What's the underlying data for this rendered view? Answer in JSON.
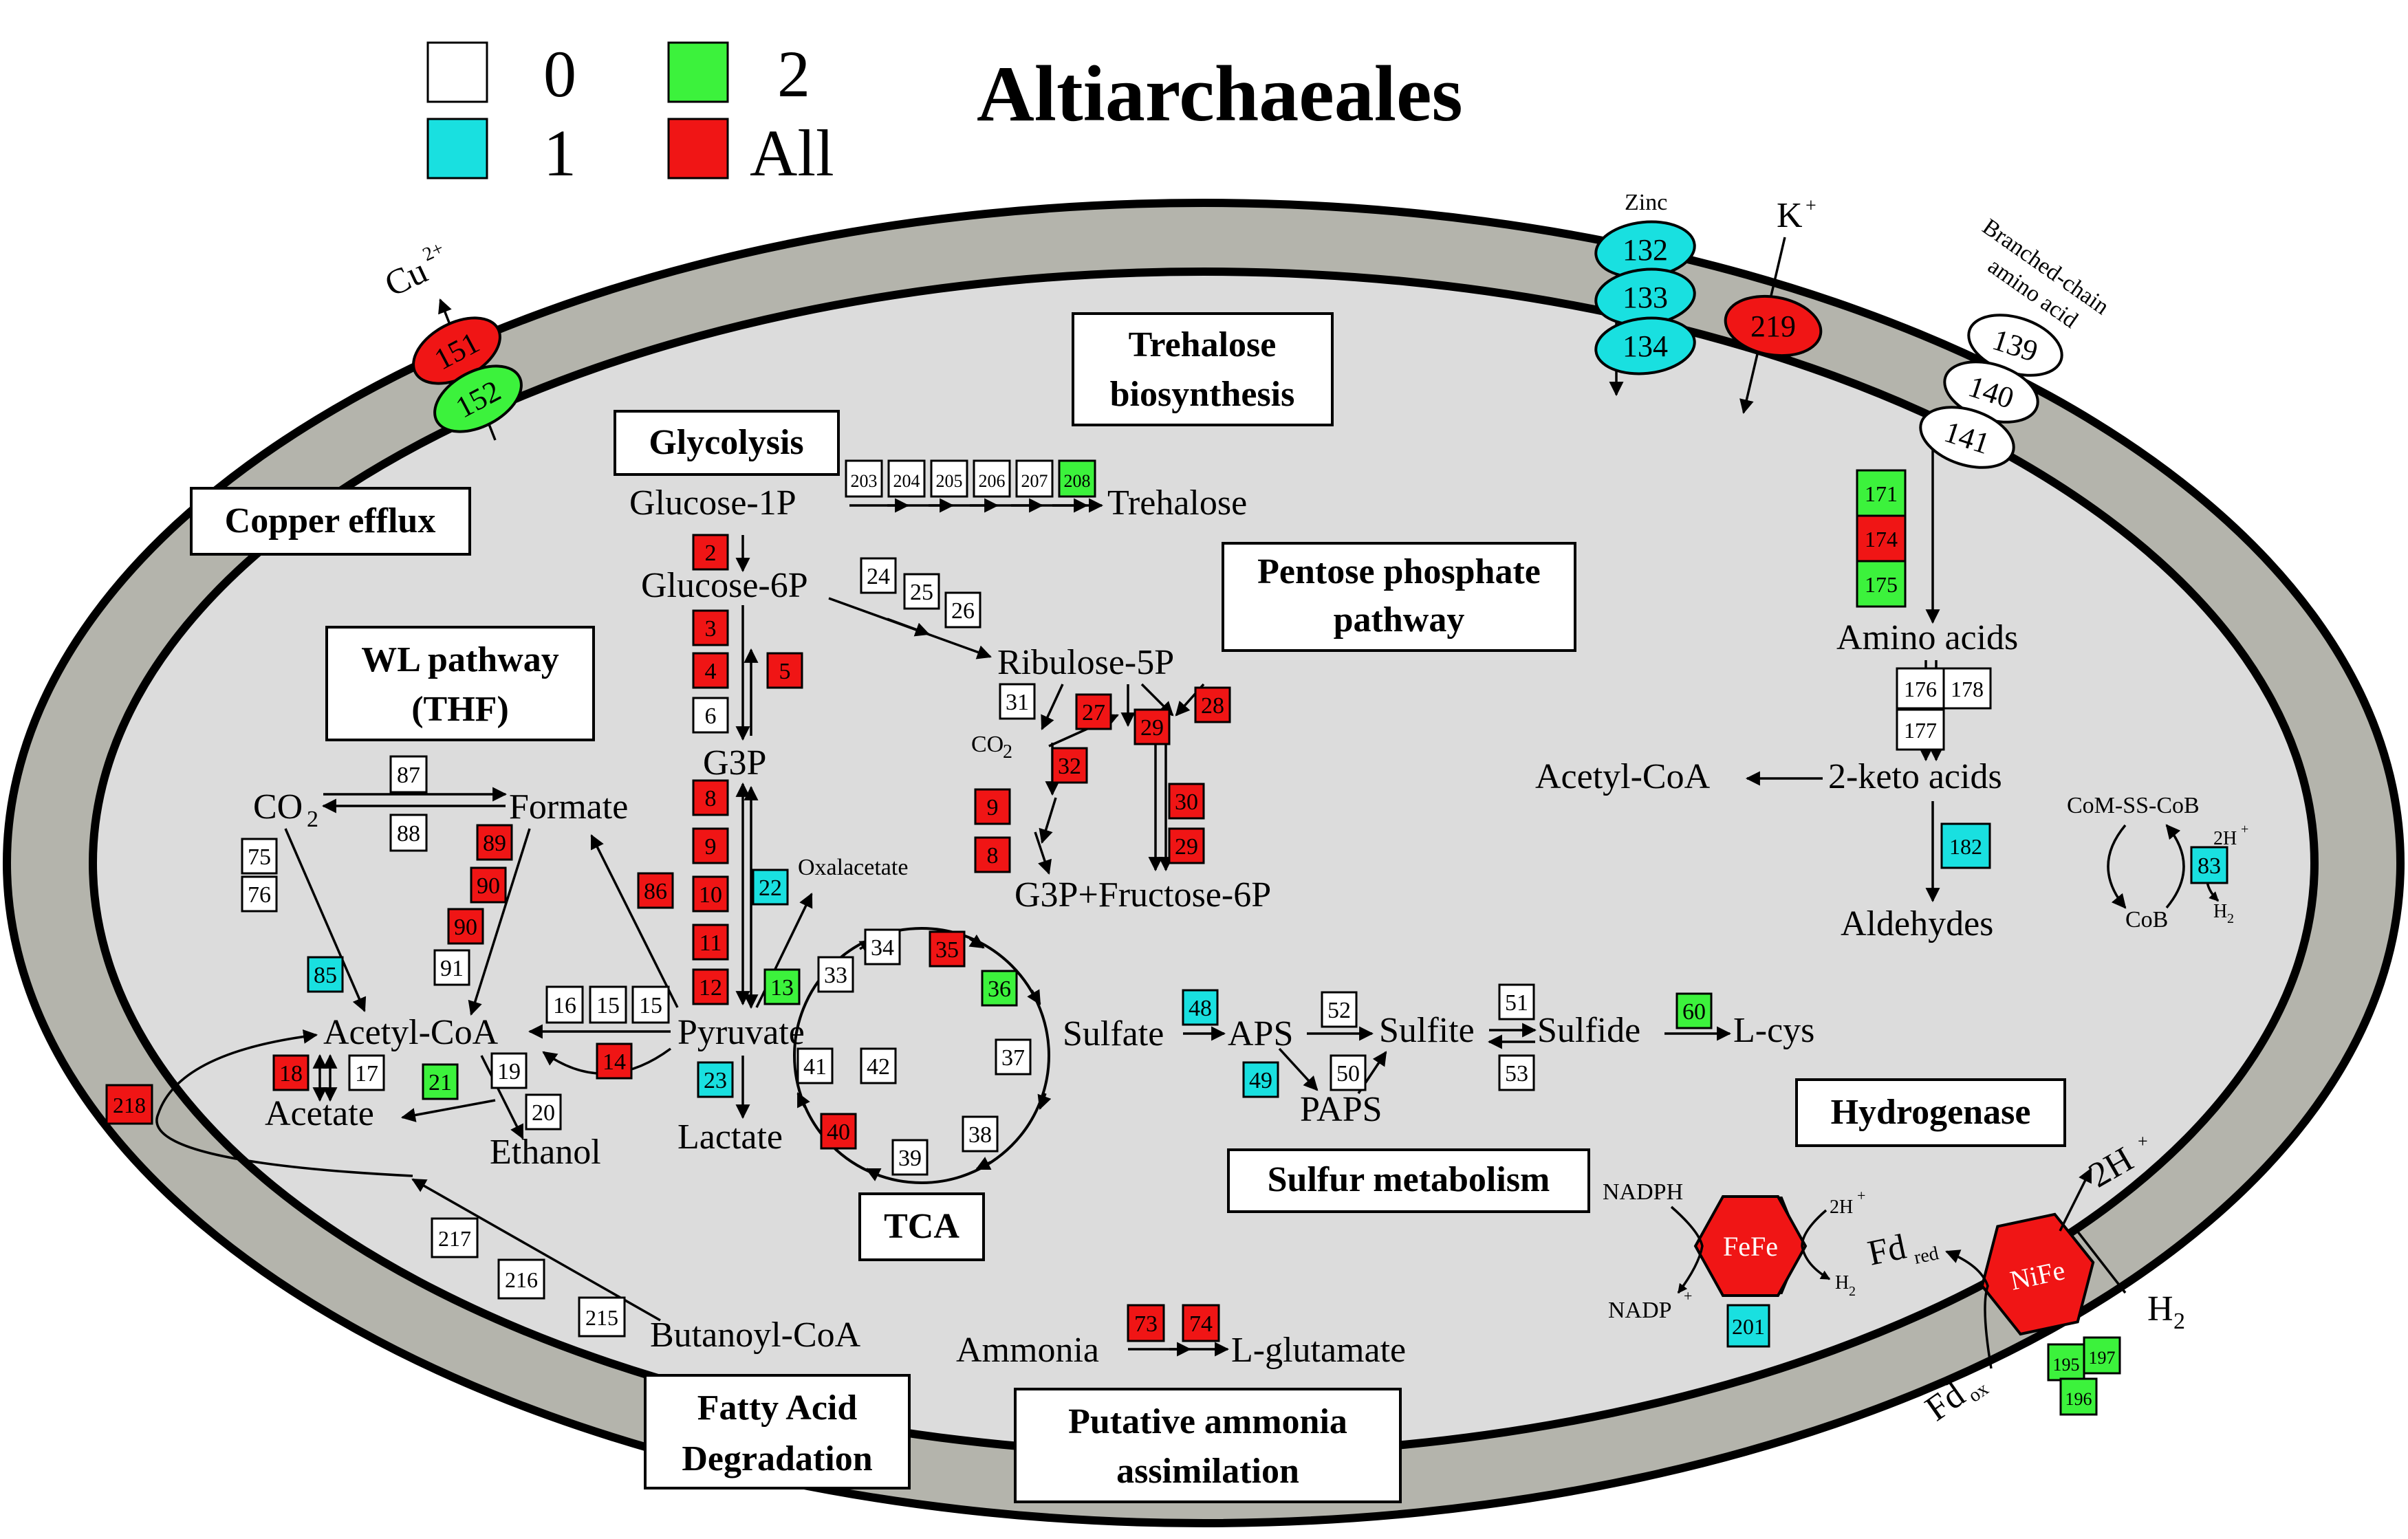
{
  "title": "Altiarchaeales",
  "colors": {
    "0": "#ffffff",
    "1": "#19e0e0",
    "2": "#3cf23c",
    "All": "#f01515"
  },
  "legend": [
    {
      "key": "0",
      "label": "0"
    },
    {
      "key": "1",
      "label": "1"
    },
    {
      "key": "2",
      "label": "2"
    },
    {
      "key": "All",
      "label": "All"
    }
  ],
  "pathway_titles": {
    "copper": "Copper efflux",
    "glycolysis": "Glycolysis",
    "trehalose_1": "Trehalose",
    "trehalose_2": "biosynthesis",
    "pentose_1": "Pentose phosphate",
    "pentose_2": "pathway",
    "wl_1": "WL pathway",
    "wl_2": "(THF)",
    "tca": "TCA",
    "sulfur": "Sulfur metabolism",
    "hydrogenase": "Hydrogenase",
    "fatty_1": "Fatty Acid",
    "fatty_2": "Degradation",
    "ammonia_1": "Putative ammonia",
    "ammonia_2": "assimilation"
  },
  "metabolites": {
    "cu": "Cu",
    "cu_charge": "2+",
    "zinc": "Zinc",
    "k": "K",
    "k_charge": "+",
    "bcaa_1": "Branched-chain",
    "bcaa_2": "amino acid",
    "glucose1p": "Glucose-1P",
    "trehalose": "Trehalose",
    "glucose6p": "Glucose-6P",
    "ribulose5p": "Ribulose-5P",
    "co2_small": "CO",
    "co2_small_sub": "2",
    "g3p": "G3P",
    "g3p_f6p": "G3P+Fructose-6P",
    "oxalacetate": "Oxalacetate",
    "co2": "CO",
    "co2_sub": "2",
    "formate": "Formate",
    "acetyl_coa": "Acetyl-CoA",
    "acetate": "Acetate",
    "ethanol": "Ethanol",
    "pyruvate": "Pyruvate",
    "lactate": "Lactate",
    "butanoyl_coa": "Butanoyl-CoA",
    "amino_acids": "Amino acids",
    "keto_acids": "2-keto acids",
    "acetyl_coa_2": "Acetyl-CoA",
    "aldehydes": "Aldehydes",
    "com_ss_cob": "CoM-SS-CoB",
    "cob": "CoB",
    "two_h_small": "2H",
    "h2_small": "H",
    "sulfate": "Sulfate",
    "aps": "APS",
    "paps": "PAPS",
    "sulfite": "Sulfite",
    "sulfide": "Sulfide",
    "lcys": "L-cys",
    "ammonia": "Ammonia",
    "lglutamate": "L-glutamate",
    "nadph": "NADPH",
    "nadp": "NADP",
    "plus": "+",
    "two_h_fefe": "2H",
    "h2_fefe": "H",
    "two_h_out": "2H",
    "h2_out": "H",
    "sub2": "2",
    "fd_red": "Fd",
    "red": "red",
    "fd_ox": "Fd",
    "ox": "ox",
    "fefe": "FeFe",
    "nife": "NiFe"
  },
  "transporters": [
    {
      "n": "151",
      "cat": "All"
    },
    {
      "n": "152",
      "cat": "2"
    },
    {
      "n": "132",
      "cat": "1"
    },
    {
      "n": "133",
      "cat": "1"
    },
    {
      "n": "134",
      "cat": "1"
    },
    {
      "n": "219",
      "cat": "All"
    },
    {
      "n": "139",
      "cat": "0"
    },
    {
      "n": "140",
      "cat": "0"
    },
    {
      "n": "141",
      "cat": "0"
    }
  ],
  "genes": [
    {
      "n": "203",
      "cat": "0"
    },
    {
      "n": "204",
      "cat": "0"
    },
    {
      "n": "205",
      "cat": "0"
    },
    {
      "n": "206",
      "cat": "0"
    },
    {
      "n": "207",
      "cat": "0"
    },
    {
      "n": "208",
      "cat": "2"
    },
    {
      "n": "2",
      "cat": "All"
    },
    {
      "n": "3",
      "cat": "All"
    },
    {
      "n": "4",
      "cat": "All"
    },
    {
      "n": "5",
      "cat": "All"
    },
    {
      "n": "6",
      "cat": "0"
    },
    {
      "n": "8",
      "cat": "All"
    },
    {
      "n": "9",
      "cat": "All"
    },
    {
      "n": "10",
      "cat": "All"
    },
    {
      "n": "11",
      "cat": "All"
    },
    {
      "n": "12",
      "cat": "All"
    },
    {
      "n": "13",
      "cat": "2"
    },
    {
      "n": "22",
      "cat": "1"
    },
    {
      "n": "23",
      "cat": "1"
    },
    {
      "n": "86",
      "cat": "All"
    },
    {
      "n": "24",
      "cat": "0"
    },
    {
      "n": "25",
      "cat": "0"
    },
    {
      "n": "26",
      "cat": "0"
    },
    {
      "n": "31",
      "cat": "0"
    },
    {
      "n": "27",
      "cat": "All"
    },
    {
      "n": "28",
      "cat": "All"
    },
    {
      "n": "29",
      "cat": "All"
    },
    {
      "n": "32",
      "cat": "All"
    },
    {
      "n": "30",
      "cat": "All"
    },
    {
      "n": "29",
      "cat": "All"
    },
    {
      "n": "9",
      "cat": "All"
    },
    {
      "n": "8",
      "cat": "All"
    },
    {
      "n": "87",
      "cat": "0"
    },
    {
      "n": "88",
      "cat": "0"
    },
    {
      "n": "75",
      "cat": "0"
    },
    {
      "n": "76",
      "cat": "0"
    },
    {
      "n": "89",
      "cat": "All"
    },
    {
      "n": "90",
      "cat": "All"
    },
    {
      "n": "90",
      "cat": "All"
    },
    {
      "n": "91",
      "cat": "0"
    },
    {
      "n": "85",
      "cat": "1"
    },
    {
      "n": "16",
      "cat": "0"
    },
    {
      "n": "15",
      "cat": "0"
    },
    {
      "n": "15",
      "cat": "0"
    },
    {
      "n": "14",
      "cat": "All"
    },
    {
      "n": "18",
      "cat": "All"
    },
    {
      "n": "17",
      "cat": "0"
    },
    {
      "n": "19",
      "cat": "0"
    },
    {
      "n": "21",
      "cat": "2"
    },
    {
      "n": "20",
      "cat": "0"
    },
    {
      "n": "218",
      "cat": "All"
    },
    {
      "n": "34",
      "cat": "0"
    },
    {
      "n": "35",
      "cat": "All"
    },
    {
      "n": "33",
      "cat": "0"
    },
    {
      "n": "36",
      "cat": "2"
    },
    {
      "n": "37",
      "cat": "0"
    },
    {
      "n": "41",
      "cat": "0"
    },
    {
      "n": "42",
      "cat": "0"
    },
    {
      "n": "38",
      "cat": "0"
    },
    {
      "n": "39",
      "cat": "0"
    },
    {
      "n": "40",
      "cat": "All"
    },
    {
      "n": "217",
      "cat": "0"
    },
    {
      "n": "216",
      "cat": "0"
    },
    {
      "n": "215",
      "cat": "0"
    },
    {
      "n": "48",
      "cat": "1"
    },
    {
      "n": "52",
      "cat": "0"
    },
    {
      "n": "49",
      "cat": "1"
    },
    {
      "n": "50",
      "cat": "0"
    },
    {
      "n": "51",
      "cat": "0"
    },
    {
      "n": "53",
      "cat": "0"
    },
    {
      "n": "60",
      "cat": "2"
    },
    {
      "n": "73",
      "cat": "All"
    },
    {
      "n": "74",
      "cat": "All"
    },
    {
      "n": "171",
      "cat": "2"
    },
    {
      "n": "174",
      "cat": "All"
    },
    {
      "n": "175",
      "cat": "2"
    },
    {
      "n": "176",
      "cat": "0"
    },
    {
      "n": "178",
      "cat": "0"
    },
    {
      "n": "177",
      "cat": "0"
    },
    {
      "n": "182",
      "cat": "1"
    },
    {
      "n": "83",
      "cat": "1"
    },
    {
      "n": "201",
      "cat": "1"
    },
    {
      "n": "195",
      "cat": "2"
    },
    {
      "n": "197",
      "cat": "2"
    },
    {
      "n": "196",
      "cat": "2"
    }
  ]
}
